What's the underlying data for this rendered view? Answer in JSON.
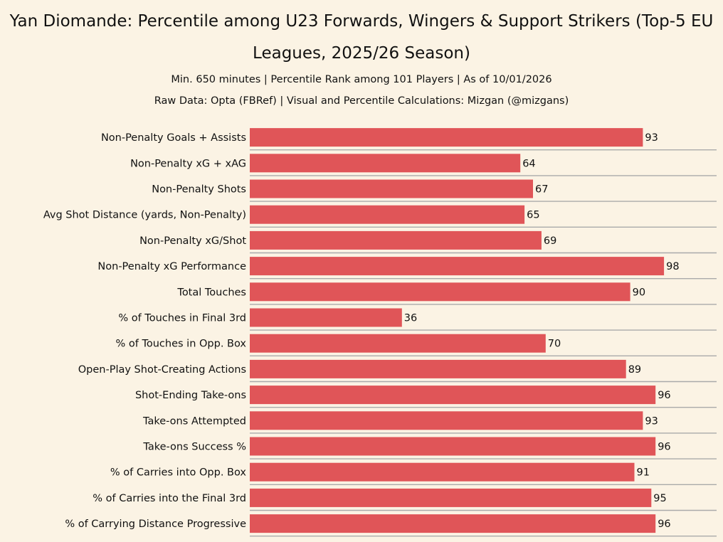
{
  "chart_data": {
    "type": "bar",
    "orientation": "horizontal",
    "title": "Yan Diomande: Percentile among U23 Forwards, Wingers & Support Strikers (Top-5 EU Leagues, 2025/26 Season)",
    "subtitle_1": "Min. 650 minutes | Percentile Rank among 101 Players | As of 10/01/2026",
    "subtitle_2": "Raw Data: Opta (FBRef) | Visual and Percentile Calculations: Mizgan (@mizgans)",
    "categories": [
      "Non-Penalty Goals + Assists",
      "Non-Penalty xG + xAG",
      "Non-Penalty Shots",
      "Avg Shot Distance (yards, Non-Penalty)",
      "Non-Penalty xG/Shot",
      "Non-Penalty xG Performance",
      "Total Touches",
      "% of Touches in Final 3rd",
      "% of Touches in Opp. Box",
      "Open-Play Shot-Creating Actions",
      "Shot-Ending Take-ons",
      "Take-ons Attempted",
      "Take-ons Success %",
      "% of Carries into Opp. Box",
      "% of Carries into the Final 3rd",
      "% of Carrying Distance Progressive"
    ],
    "values": [
      93,
      64,
      67,
      65,
      69,
      98,
      90,
      36,
      70,
      89,
      96,
      93,
      96,
      91,
      95,
      96
    ],
    "xlim": [
      0,
      100
    ],
    "bar_color": "#e05558",
    "separator_color": "#aaaaaa",
    "background": "#fbf3e4"
  }
}
